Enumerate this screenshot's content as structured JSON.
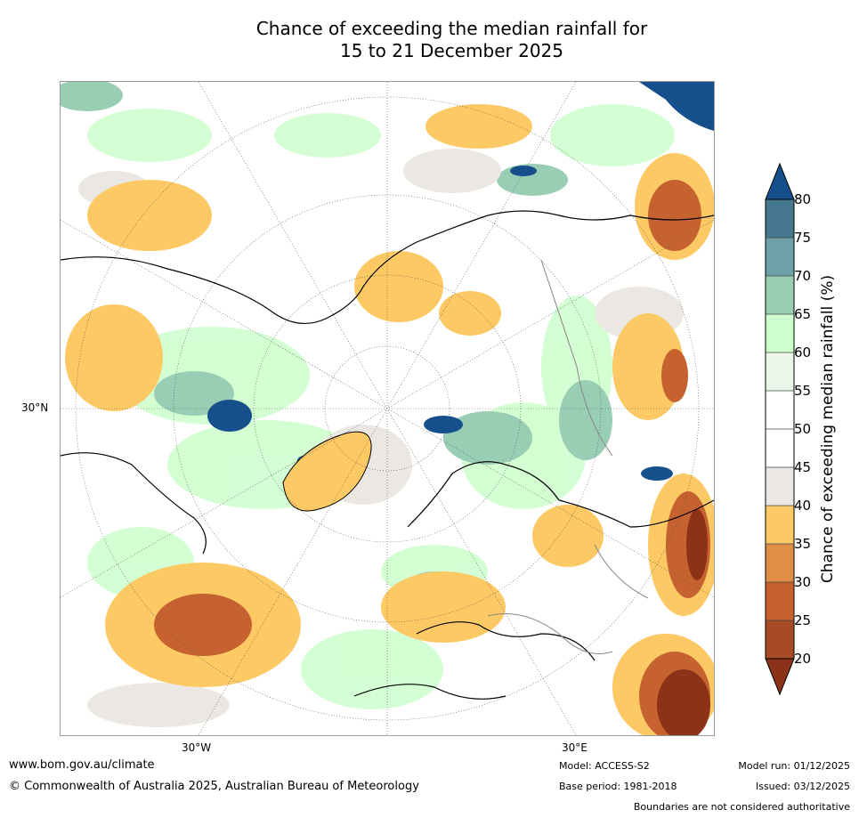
{
  "title_line1": "Chance of exceeding the median rainfall for",
  "title_line2": "15 to 21 December 2025",
  "map": {
    "projection": "north polar stereographic",
    "lat_labels": [
      "30°N"
    ],
    "lon_labels": [
      "30°W",
      "30°E"
    ]
  },
  "colorbar": {
    "label": "Chance of exceeding median rainfall (%)",
    "ticks": [
      "20",
      "25",
      "30",
      "35",
      "40",
      "45",
      "50",
      "55",
      "60",
      "65",
      "70",
      "75",
      "80"
    ],
    "colors": {
      "below20": "#8b3218",
      "20_25": "#a94a26",
      "25_30": "#c5622f",
      "30_35": "#df8f45",
      "35_40": "#fcc964",
      "40_45": "#ebe8e3",
      "45_55": "#ffffff",
      "55_60": "#eaf6e9",
      "60_65": "#ccffcc",
      "65_70": "#99cdb4",
      "70_75": "#6ca2a8",
      "75_80": "#457790",
      "above80": "#16508c"
    }
  },
  "footer": {
    "website": "www.bom.gov.au/climate",
    "copyright": "© Commonwealth of Australia 2025, Australian Bureau of Meteorology",
    "model": "Model: ACCESS-S2",
    "base_period": "Base period: 1981-2018",
    "model_run": "Model run: 01/12/2025",
    "issued": "Issued: 03/12/2025",
    "disclaimer": "Boundaries are not considered authoritative"
  }
}
